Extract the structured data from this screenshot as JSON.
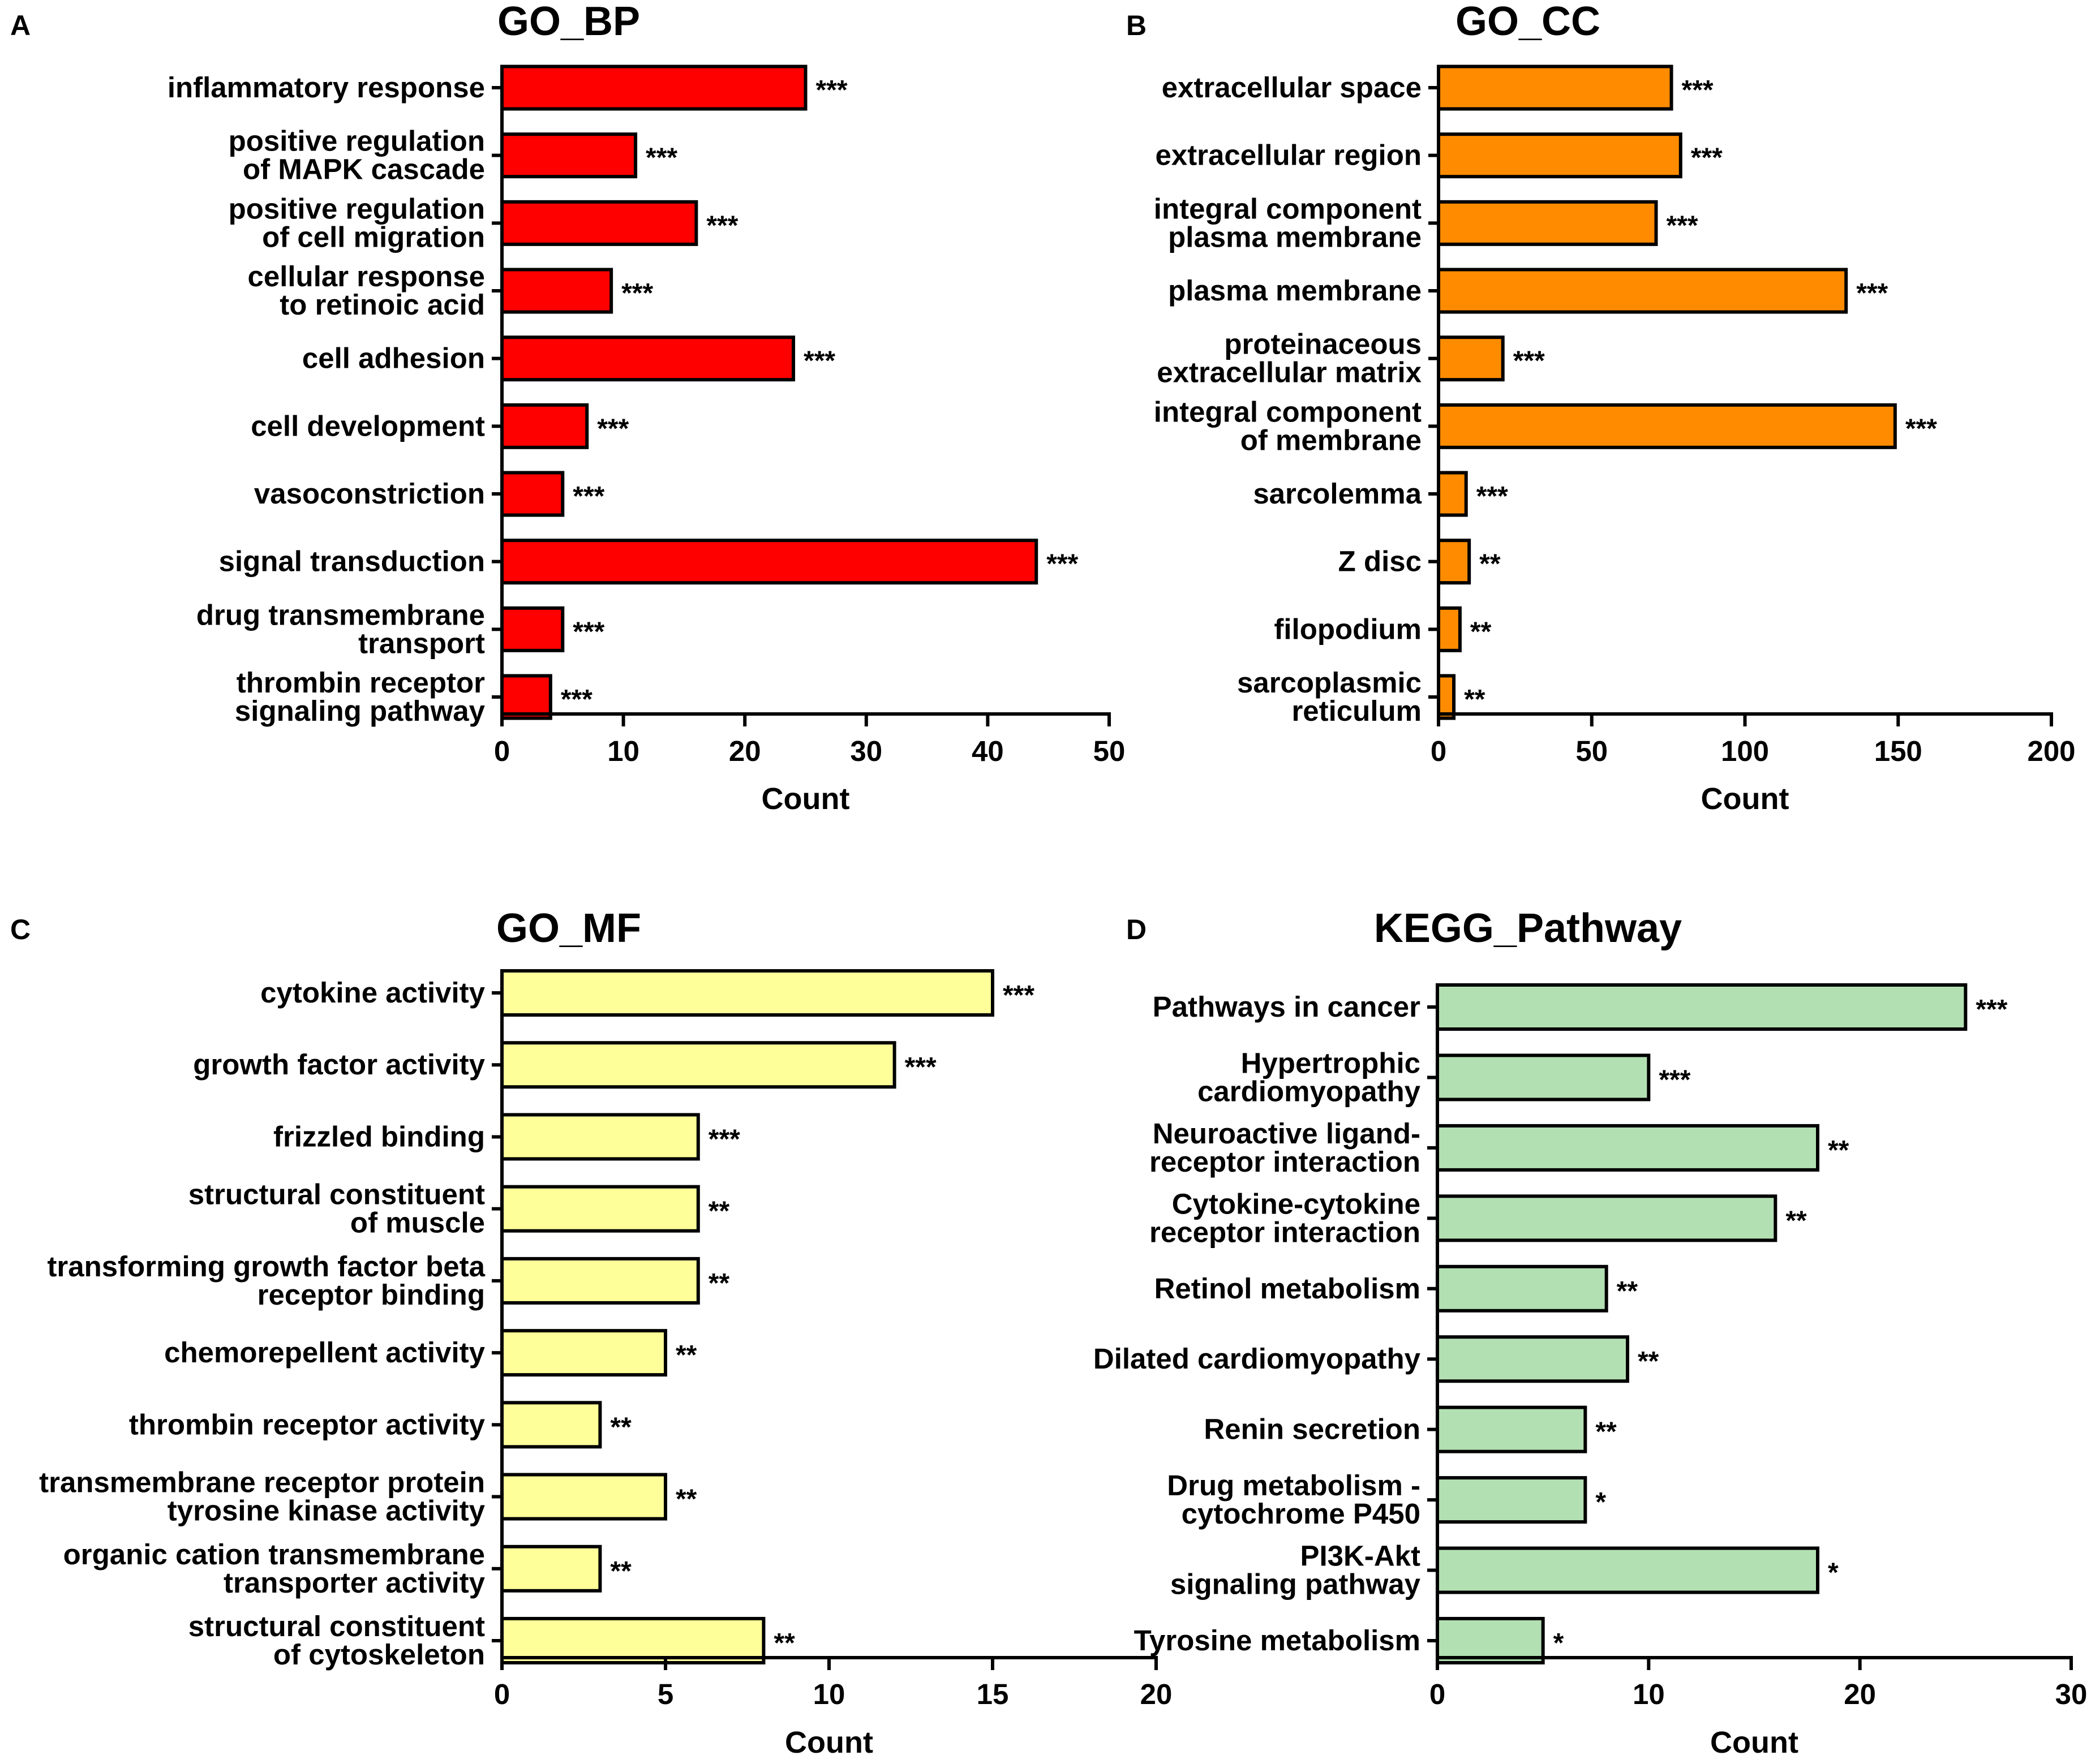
{
  "chart_data": [
    {
      "panel_label": "A",
      "type": "bar",
      "orientation": "horizontal",
      "title": "GO_BP",
      "xlabel": "Count",
      "ylabel": "",
      "xlim": [
        0,
        50
      ],
      "xticks": [
        "0",
        "10",
        "20",
        "30",
        "40",
        "50"
      ],
      "bar_color": "#ff0000",
      "categories": [
        [
          "inflammatory response"
        ],
        [
          "positive regulation",
          "of MAPK cascade"
        ],
        [
          "positive regulation",
          "of cell migration"
        ],
        [
          "cellular response",
          "to retinoic acid"
        ],
        [
          "cell adhesion"
        ],
        [
          "cell development"
        ],
        [
          "vasoconstriction"
        ],
        [
          "signal transduction"
        ],
        [
          "drug transmembrane",
          "transport"
        ],
        [
          "thrombin receptor",
          "signaling pathway"
        ]
      ],
      "values": [
        25,
        11,
        16,
        9,
        24,
        7,
        5,
        44,
        5,
        4
      ],
      "significance": [
        "***",
        "***",
        "***",
        "***",
        "***",
        "***",
        "***",
        "***",
        "***",
        "***"
      ]
    },
    {
      "panel_label": "B",
      "type": "bar",
      "orientation": "horizontal",
      "title": "GO_CC",
      "xlabel": "Count",
      "ylabel": "",
      "xlim": [
        0,
        200
      ],
      "xticks": [
        "0",
        "50",
        "100",
        "150",
        "200"
      ],
      "bar_color": "#ff8c00",
      "categories": [
        [
          "extracellular space"
        ],
        [
          "extracellular region"
        ],
        [
          "integral component",
          "plasma membrane"
        ],
        [
          "plasma membrane"
        ],
        [
          "proteinaceous",
          "extracellular matrix"
        ],
        [
          "integral component",
          "of membrane"
        ],
        [
          "sarcolemma"
        ],
        [
          "Z disc"
        ],
        [
          "filopodium"
        ],
        [
          "sarcoplasmic",
          "reticulum"
        ]
      ],
      "values": [
        76,
        79,
        71,
        133,
        21,
        149,
        9,
        10,
        7,
        5
      ],
      "significance": [
        "***",
        "***",
        "***",
        "***",
        "***",
        "***",
        "***",
        "**",
        "**",
        "**"
      ]
    },
    {
      "panel_label": "C",
      "type": "bar",
      "orientation": "horizontal",
      "title": "GO_MF",
      "xlabel": "Count",
      "ylabel": "",
      "xlim": [
        0,
        20
      ],
      "xticks": [
        "0",
        "5",
        "10",
        "15",
        "20"
      ],
      "bar_color": "#ffff99",
      "categories": [
        [
          "cytokine activity"
        ],
        [
          "growth factor activity"
        ],
        [
          "frizzled binding"
        ],
        [
          "structural constituent",
          "of muscle"
        ],
        [
          "transforming growth factor beta",
          "receptor binding"
        ],
        [
          "chemorepellent activity"
        ],
        [
          "thrombin receptor activity"
        ],
        [
          "transmembrane receptor protein",
          "tyrosine kinase activity"
        ],
        [
          "organic cation transmembrane",
          "transporter activity"
        ],
        [
          "structural constituent",
          "of cytoskeleton"
        ]
      ],
      "values": [
        15,
        12,
        6,
        6,
        6,
        5,
        3,
        5,
        3,
        8
      ],
      "significance": [
        "***",
        "***",
        "***",
        "**",
        "**",
        "**",
        "**",
        "**",
        "**",
        "**"
      ]
    },
    {
      "panel_label": "D",
      "type": "bar",
      "orientation": "horizontal",
      "title": "KEGG_Pathway",
      "xlabel": "Count",
      "ylabel": "",
      "xlim": [
        0,
        30
      ],
      "xticks": [
        "0",
        "10",
        "20",
        "30"
      ],
      "bar_color": "#b3e0b3",
      "categories": [
        [
          "Pathways in cancer"
        ],
        [
          "Hypertrophic",
          "cardiomyopathy"
        ],
        [
          "Neuroactive ligand-",
          "receptor interaction"
        ],
        [
          "Cytokine-cytokine",
          "receptor interaction"
        ],
        [
          "Retinol metabolism"
        ],
        [
          "Dilated cardiomyopathy"
        ],
        [
          "Renin secretion"
        ],
        [
          "Drug metabolism -",
          "cytochrome P450"
        ],
        [
          "PI3K-Akt",
          "signaling pathway"
        ],
        [
          "Tyrosine metabolism"
        ]
      ],
      "values": [
        25,
        10,
        18,
        16,
        8,
        9,
        7,
        7,
        18,
        5
      ],
      "significance": [
        "***",
        "***",
        "**",
        "**",
        "**",
        "**",
        "**",
        "*",
        "*",
        "*"
      ]
    }
  ]
}
